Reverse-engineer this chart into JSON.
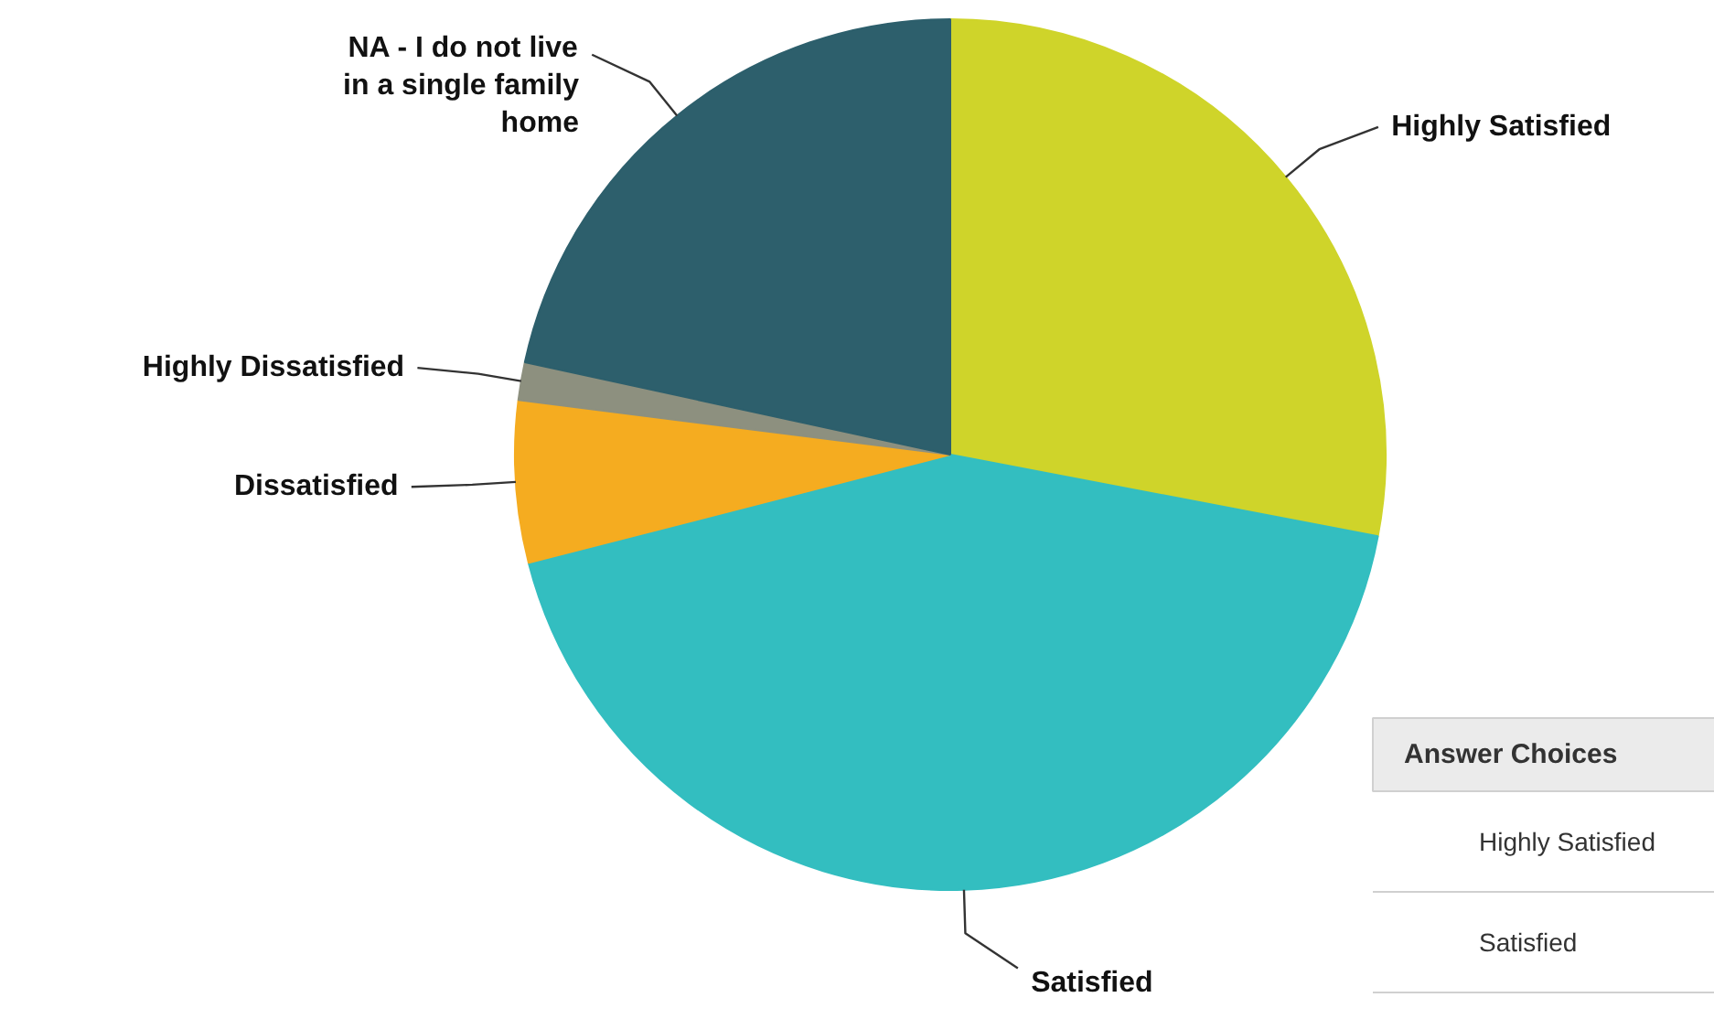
{
  "chart_data": {
    "type": "pie",
    "categories": [
      "Highly Satisfied",
      "Satisfied",
      "Dissatisfied",
      "Highly Dissatisfied",
      "NA - I do not live in a single family home"
    ],
    "values": [
      28,
      43,
      6,
      1.4,
      21.6
    ],
    "colors": [
      "#cfd42a",
      "#33bec0",
      "#f5ac20",
      "#8d907f",
      "#2d5f6c"
    ],
    "annotations": [
      "Answer Choices",
      "Highly Satisfied",
      "Satisfied"
    ]
  }
}
